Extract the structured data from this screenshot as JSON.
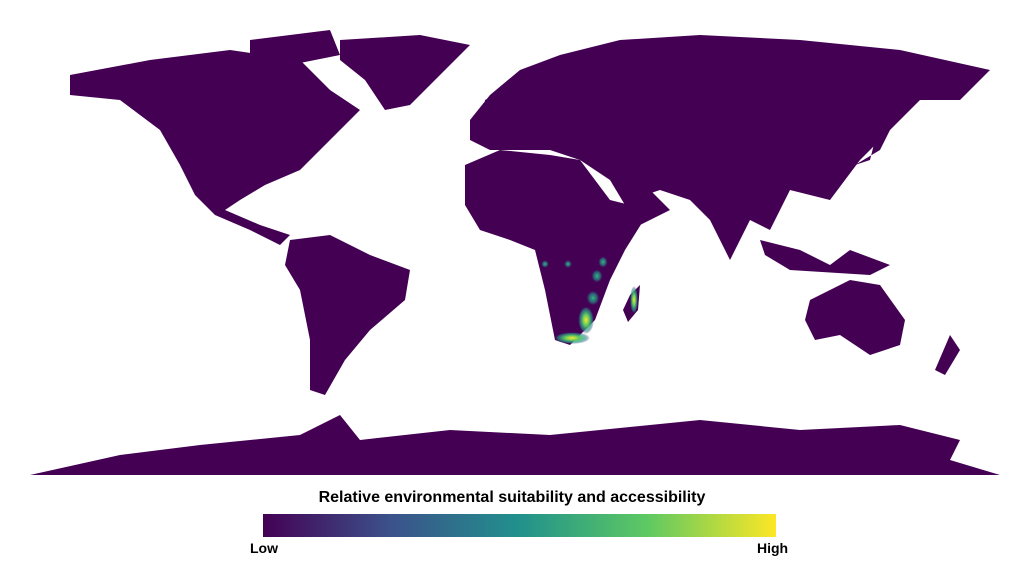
{
  "legend": {
    "title": "Relative environmental suitability and accessibility",
    "low_label": "Low",
    "high_label": "High",
    "colormap": [
      "#440154",
      "#3b528b",
      "#21918c",
      "#5ec962",
      "#fde725"
    ]
  },
  "map": {
    "land_color": "#440154",
    "background_color": "#ffffff",
    "highlighted_region": "South-eastern Africa and eastern Madagascar"
  }
}
